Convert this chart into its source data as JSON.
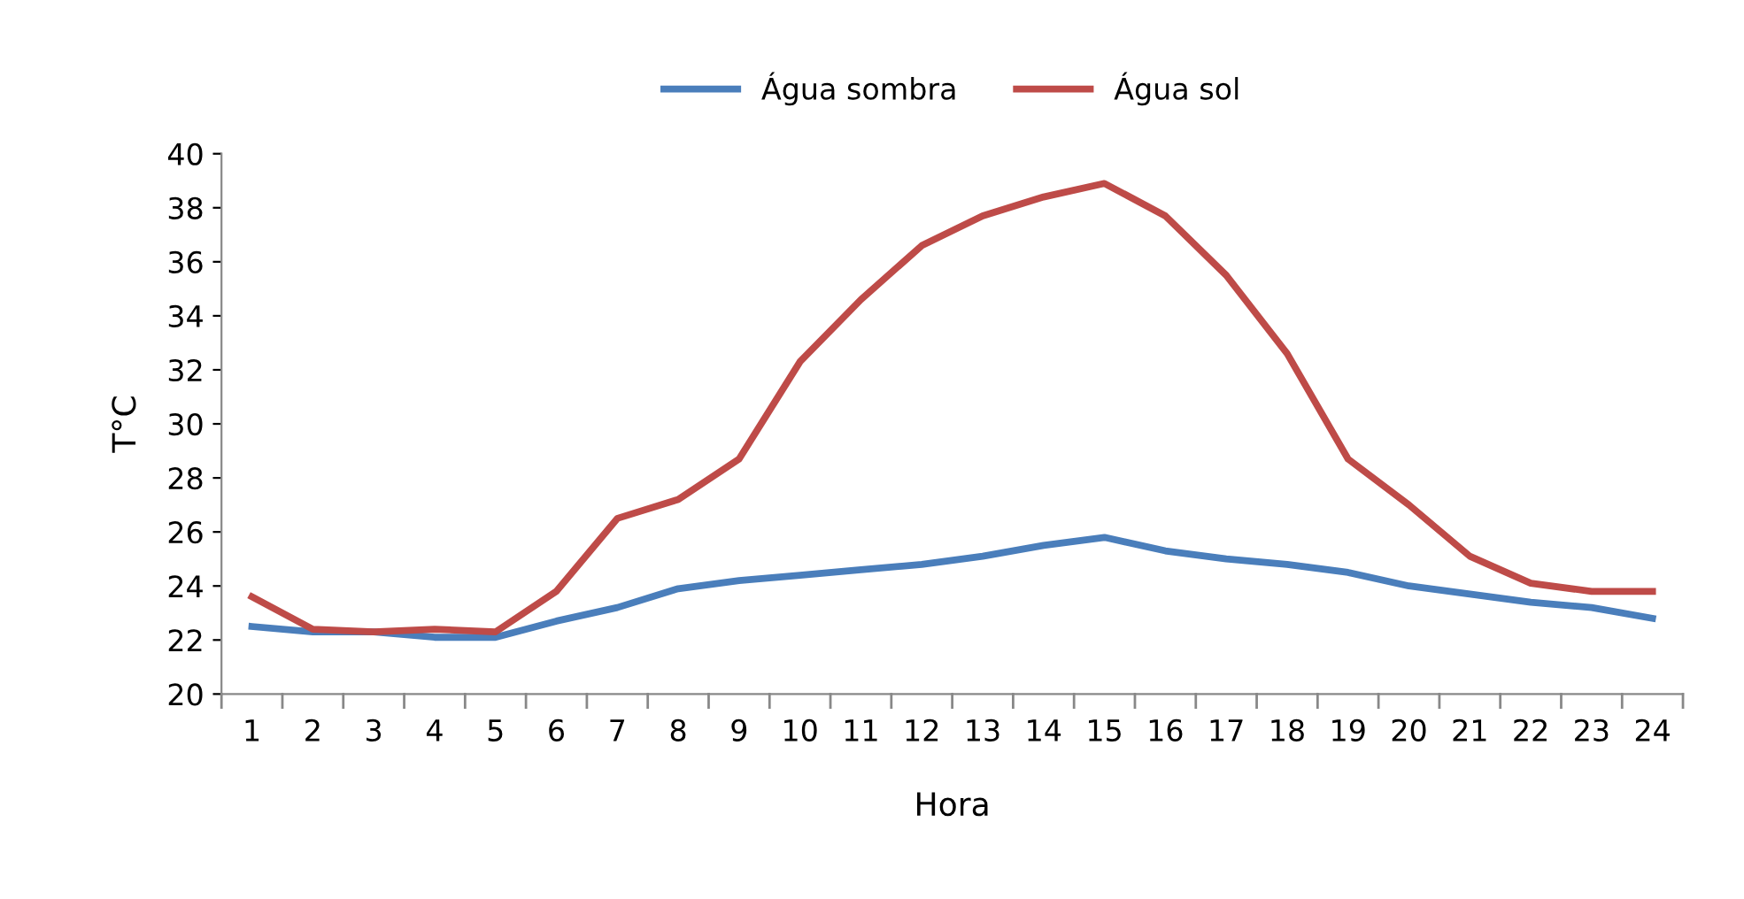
{
  "chart_data": {
    "type": "line",
    "xlabel": "Hora",
    "ylabel": "T°C",
    "categories": [
      "1",
      "2",
      "3",
      "4",
      "5",
      "6",
      "7",
      "8",
      "9",
      "10",
      "11",
      "12",
      "13",
      "14",
      "15",
      "16",
      "17",
      "18",
      "19",
      "20",
      "21",
      "22",
      "23",
      "24"
    ],
    "series": [
      {
        "name": "Água sombra",
        "color": "#4a7ebb",
        "values": [
          22.5,
          22.3,
          22.3,
          22.1,
          22.1,
          22.7,
          23.2,
          23.9,
          24.2,
          24.4,
          24.6,
          24.8,
          25.1,
          25.5,
          25.8,
          25.3,
          25.0,
          24.8,
          24.5,
          24.0,
          23.7,
          23.4,
          23.2,
          22.8
        ]
      },
      {
        "name": "Água sol",
        "color": "#be4b48",
        "values": [
          23.6,
          22.4,
          22.3,
          22.4,
          22.3,
          23.8,
          26.5,
          27.2,
          28.7,
          32.3,
          34.6,
          36.6,
          37.7,
          38.4,
          38.9,
          37.7,
          35.5,
          32.6,
          28.7,
          27.0,
          25.1,
          24.1,
          23.8,
          23.8
        ]
      }
    ],
    "ylim": [
      20,
      40
    ],
    "yticks": [
      20,
      22,
      24,
      26,
      28,
      30,
      32,
      34,
      36,
      38,
      40
    ],
    "grid": false,
    "legend": "top",
    "marker": "none",
    "line_style": "solid"
  }
}
